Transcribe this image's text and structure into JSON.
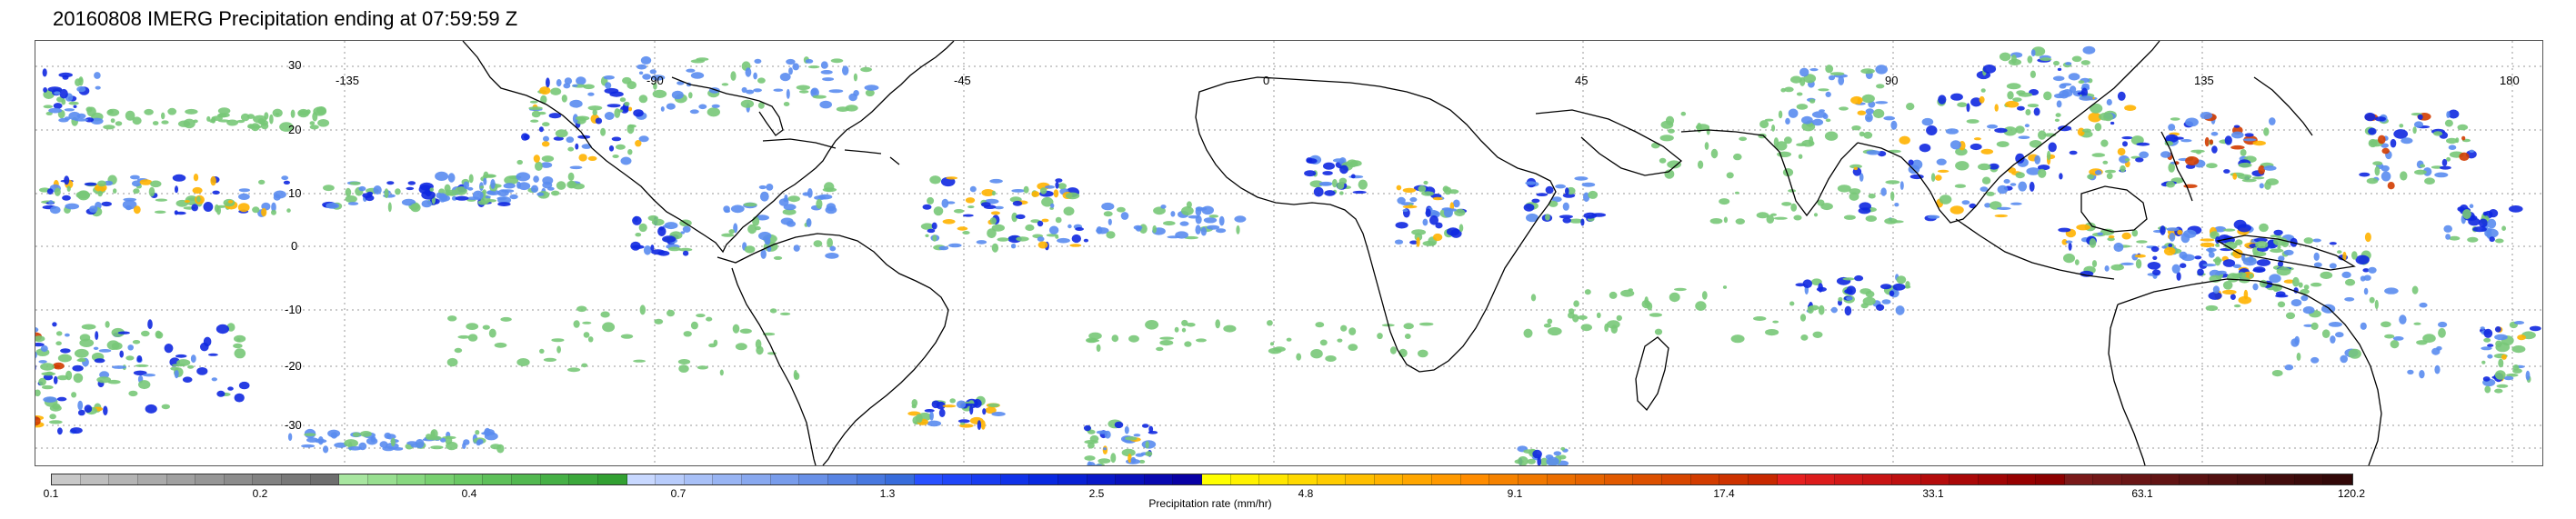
{
  "title": "20160808 IMERG Precipitation ending at 07:59:59 Z",
  "map": {
    "lat_labels": [
      "30",
      "20",
      "10",
      "0",
      "-10",
      "-20",
      "-30"
    ],
    "lon_labels": [
      "-135",
      "-90",
      "-45",
      "0",
      "45",
      "90",
      "135",
      "180"
    ],
    "background_color": "#ffffff",
    "gridline_style": "dotted",
    "coastline_color": "#000000"
  },
  "colorbar": {
    "label": "Precipitation rate (mm/hr)",
    "tick_labels": [
      "0.1",
      "0.2",
      "0.4",
      "0.7",
      "1.3",
      "2.5",
      "4.8",
      "9.1",
      "17.4",
      "33.1",
      "63.1",
      "120.2"
    ],
    "colors": [
      "#c8c8c8",
      "#bebebe",
      "#b4b4b4",
      "#aaaaaa",
      "#a0a0a0",
      "#969696",
      "#8c8c8c",
      "#828282",
      "#787878",
      "#6e6e6e",
      "#a8e6a0",
      "#98df90",
      "#88d880",
      "#78d070",
      "#6ac864",
      "#5ec05a",
      "#52b850",
      "#46b046",
      "#3ca83c",
      "#32a032",
      "#c8d8ff",
      "#b8ccfb",
      "#a8c0f7",
      "#98b4f3",
      "#88a8ef",
      "#789ceb",
      "#6890e7",
      "#5884e3",
      "#4878df",
      "#386cdb",
      "#2850ff",
      "#2046f8",
      "#183cf0",
      "#1032e8",
      "#0828e0",
      "#0820d4",
      "#0818c8",
      "#0810bc",
      "#0808b0",
      "#0800a4",
      "#ffff00",
      "#fff200",
      "#ffe600",
      "#ffd900",
      "#ffcc00",
      "#ffbf00",
      "#ffb300",
      "#ffa600",
      "#ff9900",
      "#ff8c00",
      "#f58200",
      "#f07800",
      "#eb6e00",
      "#e66400",
      "#e15a00",
      "#dc5000",
      "#d74600",
      "#d23c00",
      "#cd3200",
      "#c82800",
      "#e62020",
      "#dc1c1c",
      "#d21818",
      "#c81414",
      "#be1010",
      "#b40c0c",
      "#aa0808",
      "#a00404",
      "#960000",
      "#8c0000",
      "#7a1a1a",
      "#721818",
      "#6a1616",
      "#621414",
      "#5a1212",
      "#521010",
      "#4a0e0e",
      "#420c0c",
      "#3a0a0a",
      "#320808"
    ]
  },
  "precip_colors": {
    "light": "#78c878",
    "moderate": "#5a8cf0",
    "heavy": "#1028e0",
    "intense": "#ffb300",
    "extreme": "#d23c00"
  }
}
